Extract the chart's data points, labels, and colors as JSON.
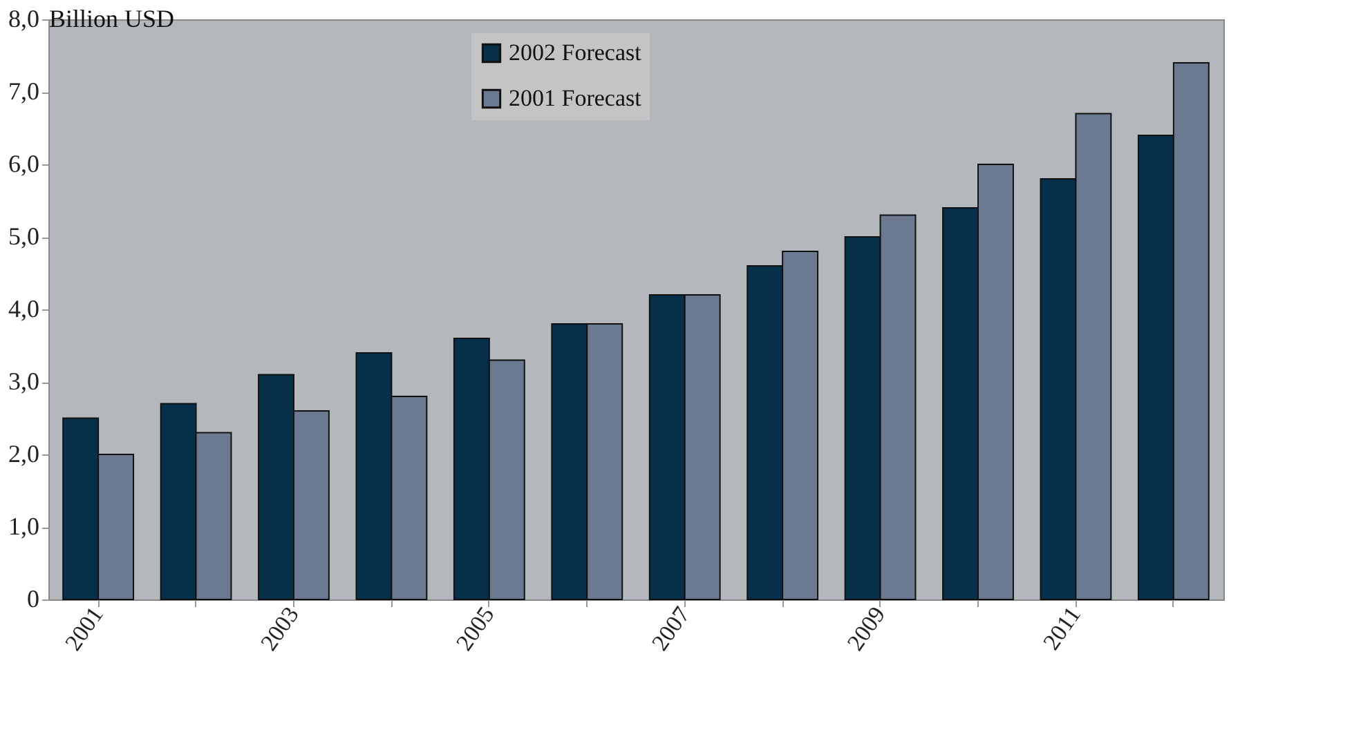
{
  "chart_data": {
    "type": "bar",
    "ylabel": "Billion USD",
    "categories": [
      "2001",
      null,
      "2003",
      null,
      "2005",
      null,
      "2007",
      null,
      "2009",
      null,
      "2011",
      null
    ],
    "series": [
      {
        "name": "2002 Forecast",
        "color": "#06304a",
        "values": [
          2.5,
          2.7,
          3.1,
          3.4,
          3.6,
          3.8,
          4.2,
          4.6,
          5.0,
          5.4,
          5.8,
          6.4
        ]
      },
      {
        "name": "2001 Forecast",
        "color": "#6b7a90",
        "values": [
          2.0,
          2.3,
          2.6,
          2.8,
          3.3,
          3.8,
          4.2,
          4.8,
          5.3,
          6.0,
          6.7,
          7.4
        ]
      }
    ],
    "ylim": [
      0,
      8
    ],
    "yticks": [
      0,
      {
        "value": 1,
        "label": "1,0"
      },
      {
        "value": 2,
        "label": "2,0"
      },
      {
        "value": 3,
        "label": "3,0"
      },
      {
        "value": 4,
        "label": "4,0"
      },
      {
        "value": 5,
        "label": "5,0"
      },
      {
        "value": 6,
        "label": "6,0"
      },
      {
        "value": 7,
        "label": "7,0"
      },
      {
        "value": 8,
        "label": "8,0"
      }
    ],
    "legend": "top"
  }
}
